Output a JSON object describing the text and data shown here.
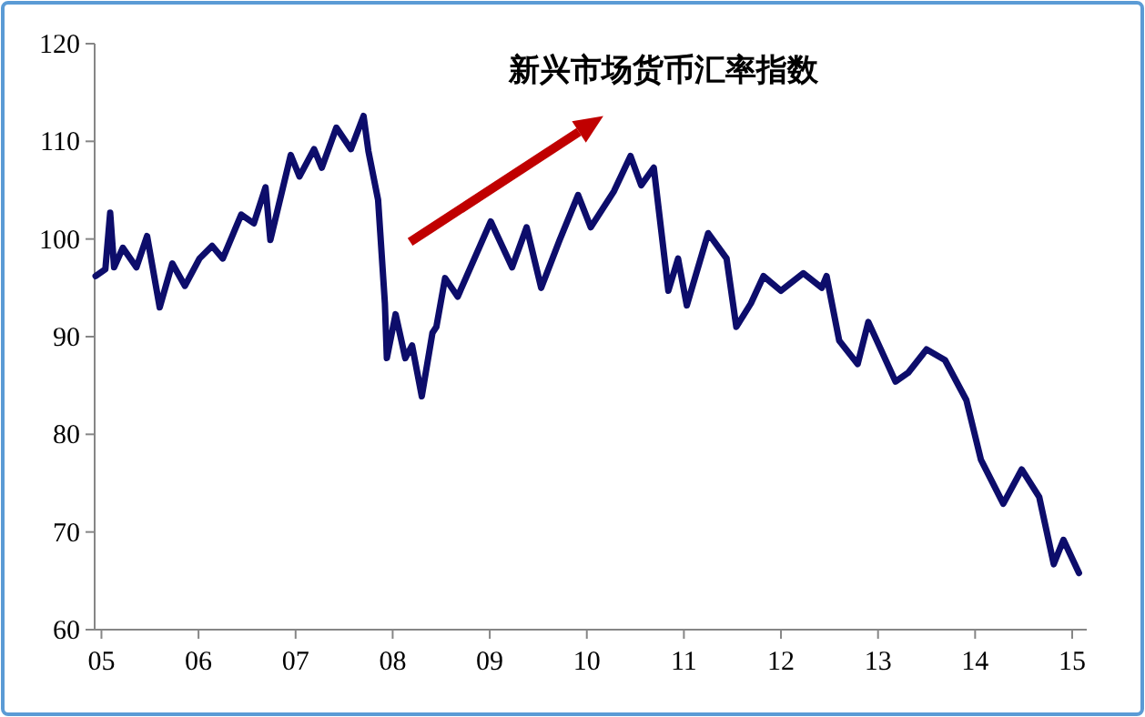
{
  "chart_data": {
    "type": "line",
    "title": "新兴市场货币汇率指数",
    "xlim": [
      2004.93,
      2015.15
    ],
    "xticks": [
      {
        "value": 2005,
        "label": "05"
      },
      {
        "value": 2006,
        "label": "06"
      },
      {
        "value": 2007,
        "label": "07"
      },
      {
        "value": 2008,
        "label": "08"
      },
      {
        "value": 2009,
        "label": "09"
      },
      {
        "value": 2010,
        "label": "10"
      },
      {
        "value": 2011,
        "label": "11"
      },
      {
        "value": 2012,
        "label": "12"
      },
      {
        "value": 2013,
        "label": "13"
      },
      {
        "value": 2014,
        "label": "14"
      },
      {
        "value": 2015,
        "label": "15"
      }
    ],
    "ylim": [
      60,
      120
    ],
    "yticks": [
      60,
      70,
      80,
      90,
      100,
      110,
      120
    ],
    "grid": false,
    "series": [
      {
        "color": "#0d0d6b",
        "x": [
          2004.94,
          2005.04,
          2005.09,
          2005.13,
          2005.22,
          2005.36,
          2005.47,
          2005.6,
          2005.73,
          2005.86,
          2006.01,
          2006.14,
          2006.25,
          2006.44,
          2006.57,
          2006.69,
          2006.74,
          2006.95,
          2007.04,
          2007.19,
          2007.27,
          2007.42,
          2007.57,
          2007.7,
          2007.75,
          2007.85,
          2007.92,
          2007.94,
          2008.03,
          2008.13,
          2008.2,
          2008.3,
          2008.41,
          2008.45,
          2008.54,
          2008.67,
          2009.01,
          2009.23,
          2009.38,
          2009.53,
          2009.72,
          2009.91,
          2010.04,
          2010.28,
          2010.45,
          2010.56,
          2010.69,
          2010.84,
          2010.94,
          2011.03,
          2011.25,
          2011.44,
          2011.54,
          2011.69,
          2011.82,
          2012.0,
          2012.23,
          2012.42,
          2012.47,
          2012.6,
          2012.79,
          2012.9,
          2013.18,
          2013.31,
          2013.5,
          2013.69,
          2013.91,
          2014.06,
          2014.29,
          2014.48,
          2014.66,
          2014.81,
          2014.91,
          2015.07
        ],
        "values": [
          96.2,
          96.9,
          102.7,
          97.1,
          99.1,
          97.1,
          100.3,
          93.0,
          97.5,
          95.2,
          98.0,
          99.3,
          98.0,
          102.5,
          101.6,
          105.3,
          99.9,
          108.6,
          106.4,
          109.2,
          107.3,
          111.4,
          109.2,
          112.6,
          109.0,
          104.0,
          93.4,
          87.8,
          92.3,
          87.8,
          89.1,
          83.9,
          90.4,
          91.0,
          96.0,
          94.1,
          101.8,
          97.1,
          101.2,
          95.0,
          99.9,
          104.5,
          101.2,
          104.9,
          108.5,
          105.5,
          107.3,
          94.7,
          98.0,
          93.2,
          100.6,
          98.0,
          91.0,
          93.4,
          96.2,
          94.7,
          96.5,
          95.0,
          96.2,
          89.6,
          87.2,
          91.5,
          85.4,
          86.3,
          88.7,
          87.6,
          83.5,
          77.4,
          72.9,
          76.4,
          73.6,
          66.7,
          69.2,
          65.8
        ]
      }
    ]
  }
}
